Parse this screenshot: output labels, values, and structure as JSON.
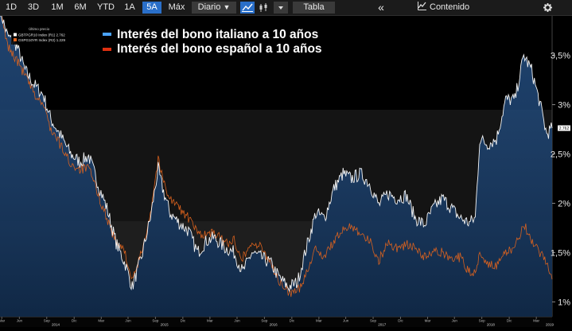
{
  "toolbar": {
    "ranges": [
      "1D",
      "3D",
      "1M",
      "6M",
      "YTD",
      "1A",
      "5A",
      "Máx"
    ],
    "active_range": "5A",
    "frequency": "Diario",
    "frequency_arrow": "▼",
    "table_label": "Tabla",
    "content_label": "Contenido",
    "collapse_glyph": "«",
    "line_chart_icon": "line-chart-icon",
    "candle_icon": "candlestick-icon",
    "dropdown_icon": "dropdown-icon",
    "settings_icon": "gear-icon"
  },
  "legend_box": {
    "header": "Último precio",
    "rows": [
      {
        "text": "GBTPGR10 Index (R1) 2.762",
        "color": "#ffffff"
      },
      {
        "text": "GSPG10YR Index (R2) 1.229",
        "color": "#e0641e"
      }
    ]
  },
  "chart_data": {
    "type": "line",
    "title": "",
    "xlabel": "",
    "ylabel": "",
    "ylim": [
      0.85,
      3.9
    ],
    "xlim": [
      "2013-12-26",
      "2019-01-23"
    ],
    "yaxis_side": "right",
    "grid": false,
    "legend_position": "top-left",
    "y_ticks": [
      {
        "value": 1,
        "label": "1%"
      },
      {
        "value": 1.5,
        "label": "1,5%"
      },
      {
        "value": 2,
        "label": "2%"
      },
      {
        "value": 2.5,
        "label": "2,5%"
      },
      {
        "value": 3,
        "label": "3%"
      },
      {
        "value": 3.5,
        "label": "3,5%"
      }
    ],
    "x_month_ticks": [
      {
        "date": "2014-01-01",
        "label": "Mar"
      },
      {
        "date": "2014-03-01",
        "label": "Jun"
      },
      {
        "date": "2014-06-01",
        "label": "Sep"
      },
      {
        "date": "2014-09-01",
        "label": "Dic"
      },
      {
        "date": "2014-12-01",
        "label": "Mar"
      },
      {
        "date": "2015-03-01",
        "label": "Jun"
      },
      {
        "date": "2015-06-01",
        "label": "Sep"
      },
      {
        "date": "2015-09-01",
        "label": "Dic"
      },
      {
        "date": "2015-12-01",
        "label": "Mar"
      },
      {
        "date": "2016-03-01",
        "label": "Jun"
      },
      {
        "date": "2016-06-01",
        "label": "Sep"
      },
      {
        "date": "2016-09-01",
        "label": "Dic"
      },
      {
        "date": "2016-12-01",
        "label": "Mar"
      },
      {
        "date": "2017-03-01",
        "label": "Jun"
      },
      {
        "date": "2017-06-01",
        "label": "Sep"
      },
      {
        "date": "2017-09-01",
        "label": "Dic"
      },
      {
        "date": "2017-12-01",
        "label": "Mar"
      },
      {
        "date": "2018-03-01",
        "label": "Jun"
      },
      {
        "date": "2018-06-01",
        "label": "Sep"
      },
      {
        "date": "2018-09-01",
        "label": "Dic"
      },
      {
        "date": "2018-12-01",
        "label": "Mar"
      }
    ],
    "x_year_ticks": [
      {
        "date": "2014-07-01",
        "label": "2014"
      },
      {
        "date": "2015-07-01",
        "label": "2015"
      },
      {
        "date": "2016-07-01",
        "label": "2016"
      },
      {
        "date": "2017-07-01",
        "label": "2017"
      },
      {
        "date": "2018-07-01",
        "label": "2018"
      },
      {
        "date": "2019-01-15",
        "label": "2019"
      }
    ],
    "last_value_label": {
      "value": 2.762,
      "text": "2.762"
    },
    "series": [
      {
        "name": "Interés del bono italiano a 10 años",
        "color": "#ffffff",
        "legend_color": "#4aa3ff",
        "fill": true,
        "points": [
          [
            "2013-12-26",
            3.96
          ],
          [
            "2014-01-20",
            3.7
          ],
          [
            "2014-02-20",
            3.6
          ],
          [
            "2014-03-20",
            3.35
          ],
          [
            "2014-04-20",
            3.2
          ],
          [
            "2014-05-20",
            3.1
          ],
          [
            "2014-06-15",
            2.85
          ],
          [
            "2014-07-15",
            2.7
          ],
          [
            "2014-08-20",
            2.5
          ],
          [
            "2014-09-20",
            2.42
          ],
          [
            "2014-10-20",
            2.48
          ],
          [
            "2014-11-20",
            2.2
          ],
          [
            "2014-12-20",
            1.95
          ],
          [
            "2015-01-20",
            1.6
          ],
          [
            "2015-02-20",
            1.38
          ],
          [
            "2015-03-15",
            1.15
          ],
          [
            "2015-04-15",
            1.45
          ],
          [
            "2015-05-15",
            1.85
          ],
          [
            "2015-06-10",
            2.35
          ],
          [
            "2015-06-25",
            2.15
          ],
          [
            "2015-07-20",
            1.9
          ],
          [
            "2015-08-20",
            1.8
          ],
          [
            "2015-09-20",
            1.72
          ],
          [
            "2015-10-20",
            1.5
          ],
          [
            "2015-11-20",
            1.62
          ],
          [
            "2015-12-15",
            1.65
          ],
          [
            "2016-01-20",
            1.55
          ],
          [
            "2016-02-20",
            1.5
          ],
          [
            "2016-03-20",
            1.3
          ],
          [
            "2016-04-20",
            1.5
          ],
          [
            "2016-05-20",
            1.45
          ],
          [
            "2016-06-20",
            1.4
          ],
          [
            "2016-07-20",
            1.25
          ],
          [
            "2016-08-20",
            1.15
          ],
          [
            "2016-09-20",
            1.2
          ],
          [
            "2016-10-20",
            1.55
          ],
          [
            "2016-11-20",
            1.9
          ],
          [
            "2016-12-20",
            1.85
          ],
          [
            "2017-01-20",
            2.15
          ],
          [
            "2017-02-20",
            2.3
          ],
          [
            "2017-03-20",
            2.25
          ],
          [
            "2017-04-20",
            2.3
          ],
          [
            "2017-05-20",
            2.2
          ],
          [
            "2017-06-20",
            1.98
          ],
          [
            "2017-07-20",
            2.1
          ],
          [
            "2017-08-20",
            2.05
          ],
          [
            "2017-09-20",
            2.08
          ],
          [
            "2017-10-20",
            1.85
          ],
          [
            "2017-11-20",
            1.78
          ],
          [
            "2017-12-20",
            1.95
          ],
          [
            "2018-01-20",
            2.05
          ],
          [
            "2018-02-20",
            1.95
          ],
          [
            "2018-03-20",
            1.85
          ],
          [
            "2018-04-20",
            1.8
          ],
          [
            "2018-05-10",
            1.85
          ],
          [
            "2018-05-25",
            2.65
          ],
          [
            "2018-06-20",
            2.6
          ],
          [
            "2018-07-20",
            2.65
          ],
          [
            "2018-08-20",
            3.05
          ],
          [
            "2018-09-20",
            3.05
          ],
          [
            "2018-10-20",
            3.5
          ],
          [
            "2018-11-15",
            3.35
          ],
          [
            "2018-12-10",
            3.05
          ],
          [
            "2019-01-05",
            2.7
          ],
          [
            "2019-01-23",
            2.762
          ]
        ]
      },
      {
        "name": "Interés del bono español a 10 años",
        "color": "#e0641e",
        "legend_color": "#e03010",
        "fill": false,
        "points": [
          [
            "2013-12-26",
            3.96
          ],
          [
            "2014-01-20",
            3.6
          ],
          [
            "2014-02-20",
            3.45
          ],
          [
            "2014-03-20",
            3.3
          ],
          [
            "2014-04-20",
            3.1
          ],
          [
            "2014-05-20",
            3.0
          ],
          [
            "2014-06-15",
            2.75
          ],
          [
            "2014-07-15",
            2.6
          ],
          [
            "2014-08-20",
            2.4
          ],
          [
            "2014-09-20",
            2.35
          ],
          [
            "2014-10-20",
            2.35
          ],
          [
            "2014-11-20",
            2.1
          ],
          [
            "2014-12-20",
            1.85
          ],
          [
            "2015-01-20",
            1.6
          ],
          [
            "2015-02-20",
            1.5
          ],
          [
            "2015-03-15",
            1.2
          ],
          [
            "2015-04-15",
            1.5
          ],
          [
            "2015-05-15",
            1.9
          ],
          [
            "2015-06-10",
            2.45
          ],
          [
            "2015-06-25",
            2.25
          ],
          [
            "2015-07-20",
            2.05
          ],
          [
            "2015-08-20",
            1.95
          ],
          [
            "2015-09-20",
            1.85
          ],
          [
            "2015-10-20",
            1.7
          ],
          [
            "2015-11-20",
            1.68
          ],
          [
            "2015-12-15",
            1.7
          ],
          [
            "2016-01-20",
            1.6
          ],
          [
            "2016-02-20",
            1.62
          ],
          [
            "2016-03-20",
            1.45
          ],
          [
            "2016-04-20",
            1.6
          ],
          [
            "2016-05-20",
            1.55
          ],
          [
            "2016-06-20",
            1.42
          ],
          [
            "2016-07-20",
            1.2
          ],
          [
            "2016-08-20",
            1.1
          ],
          [
            "2016-09-20",
            1.1
          ],
          [
            "2016-10-20",
            1.3
          ],
          [
            "2016-11-20",
            1.55
          ],
          [
            "2016-12-20",
            1.45
          ],
          [
            "2017-01-20",
            1.62
          ],
          [
            "2017-02-20",
            1.72
          ],
          [
            "2017-03-20",
            1.78
          ],
          [
            "2017-04-20",
            1.7
          ],
          [
            "2017-05-20",
            1.62
          ],
          [
            "2017-06-20",
            1.42
          ],
          [
            "2017-07-20",
            1.6
          ],
          [
            "2017-08-20",
            1.55
          ],
          [
            "2017-09-20",
            1.58
          ],
          [
            "2017-10-20",
            1.55
          ],
          [
            "2017-11-20",
            1.45
          ],
          [
            "2017-12-20",
            1.5
          ],
          [
            "2018-01-20",
            1.5
          ],
          [
            "2018-02-20",
            1.45
          ],
          [
            "2018-03-20",
            1.45
          ],
          [
            "2018-04-20",
            1.3
          ],
          [
            "2018-05-10",
            1.3
          ],
          [
            "2018-05-25",
            1.5
          ],
          [
            "2018-06-20",
            1.4
          ],
          [
            "2018-07-20",
            1.35
          ],
          [
            "2018-08-20",
            1.5
          ],
          [
            "2018-09-20",
            1.55
          ],
          [
            "2018-10-20",
            1.8
          ],
          [
            "2018-11-15",
            1.6
          ],
          [
            "2018-12-10",
            1.5
          ],
          [
            "2019-01-05",
            1.4
          ],
          [
            "2019-01-23",
            1.229
          ]
        ]
      }
    ]
  }
}
